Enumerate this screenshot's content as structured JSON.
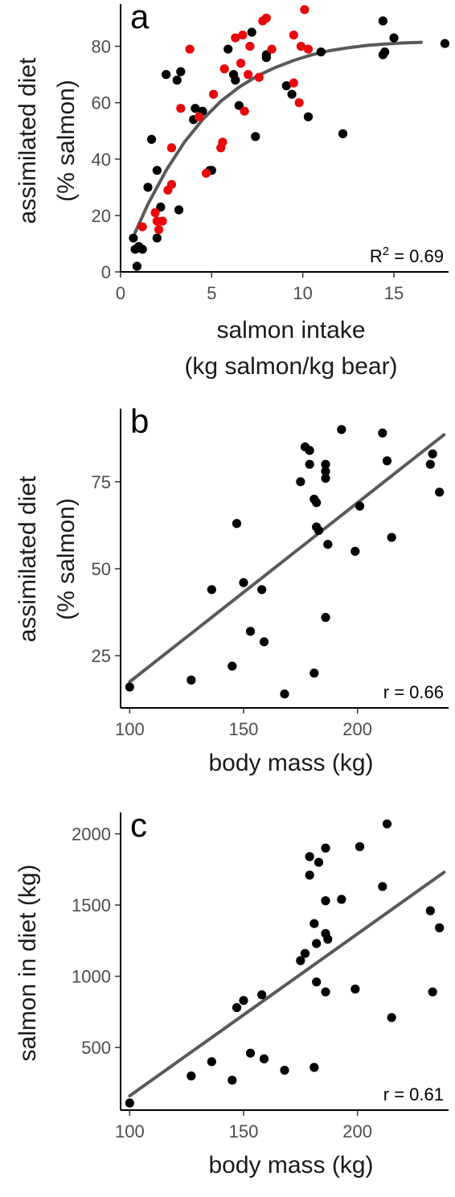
{
  "colors": {
    "black_points": "#000000",
    "red_points": "#e8080b",
    "fit_line": "#595959"
  },
  "chart_data": [
    {
      "type": "scatter",
      "panel_label": "a",
      "xlabel": "salmon intake",
      "xlabel2": "(kg salmon/kg bear)",
      "ylabel": "assimilated diet",
      "ylabel2": "(% salmon)",
      "xlim": [
        0,
        18
      ],
      "ylim": [
        0,
        95
      ],
      "x_ticks": [
        0,
        5,
        10,
        15
      ],
      "y_ticks": [
        0,
        20,
        40,
        60,
        80
      ],
      "stat_prefix": "R",
      "stat_sup": "2",
      "stat_suffix": " = 0.69",
      "fit": {
        "type": "curve",
        "points": [
          [
            0.8,
            14
          ],
          [
            1.5,
            24
          ],
          [
            2.5,
            36
          ],
          [
            3.5,
            46
          ],
          [
            4.5,
            54
          ],
          [
            5.5,
            60.5
          ],
          [
            6.5,
            65.5
          ],
          [
            7.5,
            69.5
          ],
          [
            8.5,
            72.5
          ],
          [
            9.5,
            75
          ],
          [
            10.5,
            77
          ],
          [
            11.5,
            78.5
          ],
          [
            12.5,
            79.5
          ],
          [
            13.5,
            80.3
          ],
          [
            14.5,
            80.8
          ],
          [
            15.5,
            81.2
          ],
          [
            16.5,
            81.4
          ]
        ]
      },
      "series": [
        {
          "color": "#000000",
          "points": [
            [
              0.7,
              12
            ],
            [
              0.8,
              8
            ],
            [
              0.9,
              2
            ],
            [
              1.0,
              9
            ],
            [
              1.2,
              8
            ],
            [
              1.5,
              30
            ],
            [
              1.7,
              47
            ],
            [
              2.0,
              12
            ],
            [
              2.0,
              36
            ],
            [
              2.2,
              23
            ],
            [
              2.5,
              70
            ],
            [
              3.1,
              68
            ],
            [
              3.2,
              22
            ],
            [
              3.3,
              71
            ],
            [
              4.0,
              54
            ],
            [
              4.1,
              58
            ],
            [
              4.5,
              57
            ],
            [
              4.9,
              36
            ],
            [
              5.0,
              36
            ],
            [
              5.9,
              79
            ],
            [
              6.2,
              70
            ],
            [
              6.3,
              68
            ],
            [
              6.5,
              59
            ],
            [
              7.2,
              85
            ],
            [
              7.4,
              48
            ],
            [
              8.0,
              76
            ],
            [
              8.0,
              77
            ],
            [
              9.1,
              66
            ],
            [
              9.4,
              63
            ],
            [
              10.3,
              55
            ],
            [
              11.0,
              78
            ],
            [
              12.2,
              49
            ],
            [
              14.4,
              77
            ],
            [
              14.4,
              89
            ],
            [
              14.5,
              78
            ],
            [
              15.0,
              83
            ],
            [
              17.8,
              81
            ]
          ]
        },
        {
          "color": "#e8080b",
          "points": [
            [
              1.2,
              16
            ],
            [
              1.9,
              21
            ],
            [
              2.0,
              18
            ],
            [
              2.1,
              15
            ],
            [
              2.3,
              18
            ],
            [
              2.6,
              29
            ],
            [
              2.8,
              31
            ],
            [
              2.8,
              44
            ],
            [
              3.3,
              58
            ],
            [
              3.8,
              79
            ],
            [
              4.3,
              55
            ],
            [
              4.7,
              35
            ],
            [
              5.1,
              63
            ],
            [
              5.5,
              44
            ],
            [
              5.6,
              46
            ],
            [
              5.7,
              72
            ],
            [
              6.3,
              83
            ],
            [
              6.6,
              74
            ],
            [
              6.7,
              84
            ],
            [
              6.8,
              57
            ],
            [
              7.0,
              70
            ],
            [
              7.1,
              80
            ],
            [
              7.6,
              69
            ],
            [
              7.8,
              89
            ],
            [
              8.0,
              90
            ],
            [
              8.3,
              79
            ],
            [
              9.5,
              67
            ],
            [
              9.5,
              84
            ],
            [
              9.8,
              60
            ],
            [
              9.9,
              80
            ],
            [
              10.1,
              93
            ],
            [
              10.3,
              79
            ]
          ]
        }
      ]
    },
    {
      "type": "scatter",
      "panel_label": "b",
      "xlabel": "body mass (kg)",
      "ylabel": "assimilated diet",
      "ylabel2": "(% salmon)",
      "xlim": [
        96,
        240
      ],
      "ylim": [
        10,
        96
      ],
      "x_ticks": [
        100,
        150,
        200
      ],
      "y_ticks": [
        25,
        50,
        75
      ],
      "stat_prefix": "r",
      "stat_suffix": " = 0.66",
      "fit": {
        "type": "line",
        "points": [
          [
            100,
            17.5
          ],
          [
            238,
            88.5
          ]
        ]
      },
      "series": [
        {
          "color": "#000000",
          "points": [
            [
              100,
              16
            ],
            [
              127,
              18
            ],
            [
              136,
              44
            ],
            [
              145,
              22
            ],
            [
              147,
              63
            ],
            [
              150,
              46
            ],
            [
              153,
              32
            ],
            [
              158,
              44
            ],
            [
              159,
              29
            ],
            [
              168,
              14
            ],
            [
              175,
              75
            ],
            [
              177,
              85
            ],
            [
              179,
              84
            ],
            [
              179,
              80
            ],
            [
              181,
              70
            ],
            [
              181,
              20
            ],
            [
              182,
              69
            ],
            [
              182,
              62
            ],
            [
              183,
              61
            ],
            [
              186,
              80
            ],
            [
              186,
              78
            ],
            [
              186,
              76
            ],
            [
              186,
              36
            ],
            [
              187,
              57
            ],
            [
              193,
              90
            ],
            [
              199,
              55
            ],
            [
              201,
              68
            ],
            [
              211,
              89
            ],
            [
              213,
              81
            ],
            [
              215,
              59
            ],
            [
              232,
              80
            ],
            [
              233,
              83
            ],
            [
              236,
              72
            ]
          ]
        }
      ]
    },
    {
      "type": "scatter",
      "panel_label": "c",
      "xlabel": "body mass (kg)",
      "ylabel": "salmon in diet (kg)",
      "xlim": [
        96,
        240
      ],
      "ylim": [
        60,
        2150
      ],
      "x_ticks": [
        100,
        150,
        200
      ],
      "y_ticks": [
        500,
        1000,
        1500,
        2000
      ],
      "stat_prefix": "r",
      "stat_suffix": " = 0.61",
      "fit": {
        "type": "line",
        "points": [
          [
            100,
            160
          ],
          [
            238,
            1730
          ]
        ]
      },
      "series": [
        {
          "color": "#000000",
          "points": [
            [
              100,
              110
            ],
            [
              127,
              300
            ],
            [
              136,
              400
            ],
            [
              145,
              270
            ],
            [
              147,
              780
            ],
            [
              150,
              830
            ],
            [
              153,
              460
            ],
            [
              158,
              870
            ],
            [
              159,
              420
            ],
            [
              168,
              340
            ],
            [
              175,
              1110
            ],
            [
              177,
              1160
            ],
            [
              179,
              1710
            ],
            [
              179,
              1840
            ],
            [
              181,
              1370
            ],
            [
              181,
              360
            ],
            [
              182,
              1230
            ],
            [
              182,
              960
            ],
            [
              183,
              1800
            ],
            [
              186,
              1900
            ],
            [
              186,
              1530
            ],
            [
              186,
              890
            ],
            [
              186,
              1300
            ],
            [
              187,
              1260
            ],
            [
              193,
              1540
            ],
            [
              199,
              910
            ],
            [
              201,
              1910
            ],
            [
              211,
              1630
            ],
            [
              213,
              2070
            ],
            [
              215,
              710
            ],
            [
              232,
              1460
            ],
            [
              233,
              890
            ],
            [
              236,
              1340
            ]
          ]
        }
      ]
    }
  ]
}
